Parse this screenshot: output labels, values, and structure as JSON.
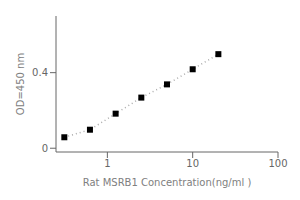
{
  "chart_data": {
    "type": "line",
    "title": "",
    "xlabel": "Rat MSRB1 Concentration(ng/ml )",
    "ylabel": "OD=450 nm",
    "x": [
      0.313,
      0.625,
      1.25,
      2.5,
      5,
      10,
      20
    ],
    "values": [
      0.058,
      0.098,
      0.183,
      0.268,
      0.338,
      0.418,
      0.498
    ],
    "log": "x",
    "xlim": [
      0.25,
      100
    ],
    "ylim": [
      -0.02,
      0.7
    ],
    "xticks": [
      1,
      10,
      100
    ],
    "yticks": [
      0,
      0.4
    ],
    "grid": false,
    "color": "#aaaaaa",
    "marker": "square",
    "line_style": "dotted"
  }
}
